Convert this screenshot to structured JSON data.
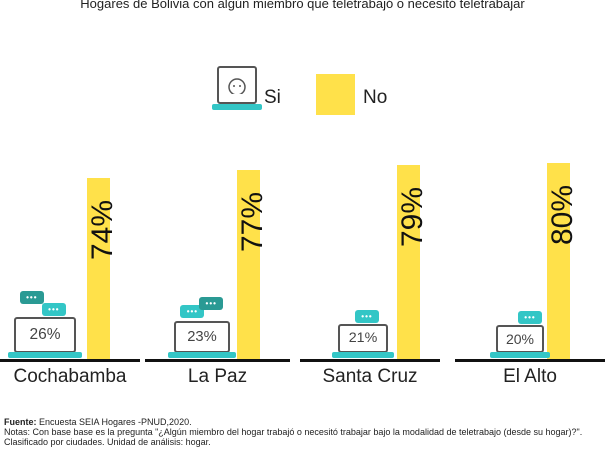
{
  "chart_data": {
    "type": "bar",
    "title": "Hogares de Bolivia con algún miembro que teletrabajó o necesitó teletrabajar",
    "categories": [
      "Cochabamba",
      "La Paz",
      "Santa Cruz",
      "El Alto"
    ],
    "series": [
      {
        "name": "Si",
        "values": [
          26,
          23,
          21,
          20
        ],
        "labels": [
          "26%",
          "23%",
          "21%",
          "20%"
        ],
        "color": "#33C6C6"
      },
      {
        "name": "No",
        "values": [
          74,
          77,
          79,
          80
        ],
        "labels": [
          "74%",
          "77%",
          "79%",
          "80%"
        ],
        "color": "#FFE14A"
      }
    ],
    "ylim": [
      0,
      100
    ],
    "legend": "top-center"
  },
  "notes": {
    "source_label": "Fuente:",
    "source": " Encuesta SEIA Hogares -PNUD,2020.",
    "note": "Notas: Con base base es la pregunta \"¿Algún miembro del hogar trabajó o necesitó trabajar bajo la modalidad de teletrabajo (desde su hogar)?\". Clasificado por ciudades. Unidad de análisis: hogar."
  }
}
